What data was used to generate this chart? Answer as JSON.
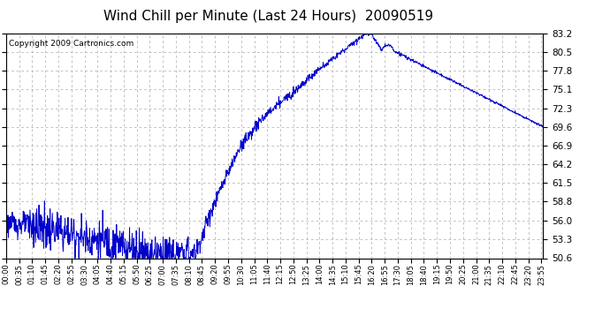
{
  "title": "Wind Chill per Minute (Last 24 Hours)  20090519",
  "copyright": "Copyright 2009 Cartronics.com",
  "line_color": "#0000cc",
  "bg_color": "#ffffff",
  "grid_color": "#aaaaaa",
  "ylim": [
    50.6,
    83.2
  ],
  "yticks": [
    50.6,
    53.3,
    56.0,
    58.8,
    61.5,
    64.2,
    66.9,
    69.6,
    72.3,
    75.1,
    77.8,
    80.5,
    83.2
  ],
  "title_fontsize": 11,
  "copyright_fontsize": 6.5,
  "tick_label_fontsize": 6.0,
  "ytick_fontsize": 7.5,
  "line_width": 0.7
}
